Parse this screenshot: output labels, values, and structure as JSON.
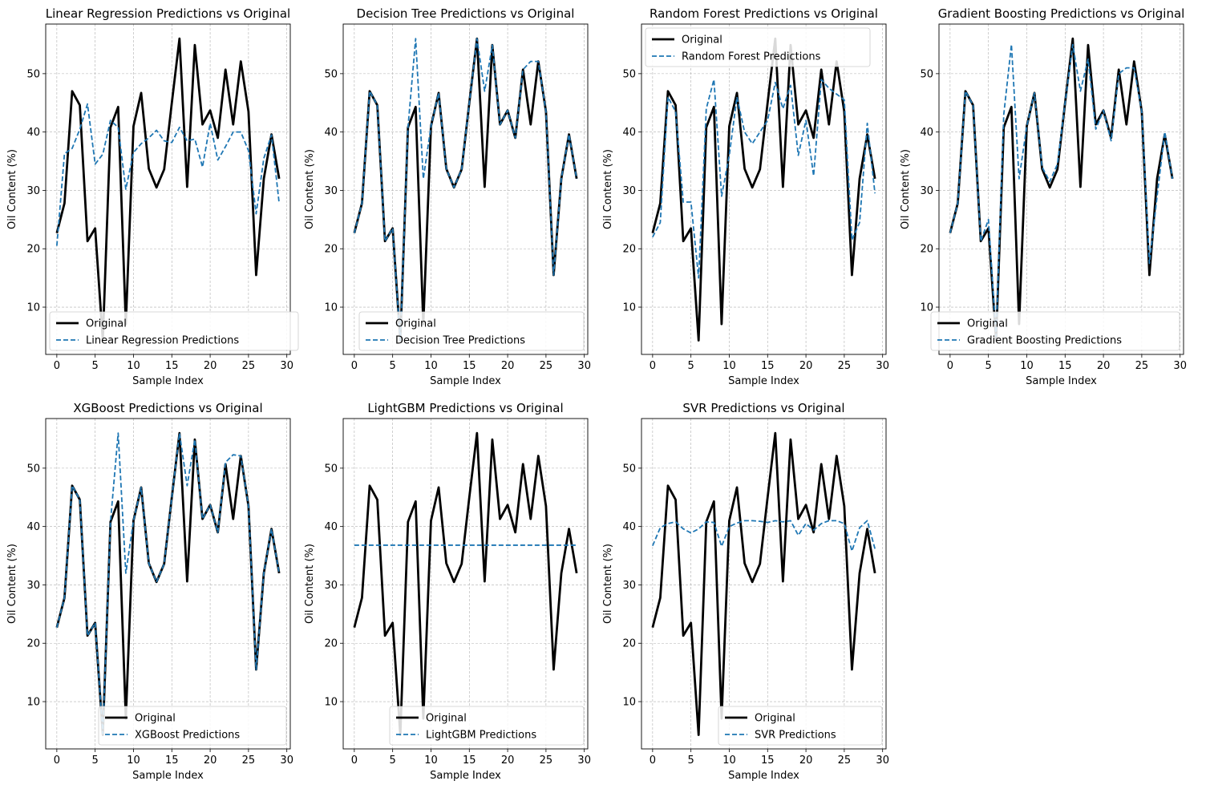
{
  "colors": {
    "original": "#000000",
    "prediction": "#1f77b4",
    "grid": "#b0b0b0"
  },
  "chart_data": [
    {
      "type": "line",
      "title": "Linear Regression Predictions vs Original",
      "xlabel": "Sample Index",
      "ylabel": "Oil Content (%)",
      "xlim": [
        -1.45,
        30.45
      ],
      "ylim": [
        1.9,
        58.5
      ],
      "xticks": [
        0,
        5,
        10,
        15,
        20,
        25,
        30
      ],
      "yticks": [
        10,
        20,
        30,
        40,
        50
      ],
      "grid": true,
      "legend_position": "lower-left",
      "x": [
        0,
        1,
        2,
        3,
        4,
        5,
        6,
        7,
        8,
        9,
        10,
        11,
        12,
        13,
        14,
        15,
        16,
        17,
        18,
        19,
        20,
        21,
        22,
        23,
        24,
        25,
        26,
        27,
        28,
        29
      ],
      "series": [
        {
          "name": "Original",
          "style": "solid",
          "values": [
            22.7,
            27.8,
            47.0,
            44.6,
            21.3,
            23.5,
            4.3,
            40.8,
            44.3,
            7.1,
            41.0,
            46.7,
            33.7,
            30.5,
            33.6,
            45.0,
            56.0,
            30.6,
            54.9,
            41.3,
            43.7,
            39.0,
            50.7,
            41.3,
            52.1,
            43.5,
            15.5,
            32.0,
            39.6,
            32.0
          ]
        },
        {
          "name": "Linear Regression Predictions",
          "style": "dashed",
          "values": [
            20.5,
            36.3,
            37.2,
            40.5,
            44.8,
            34.5,
            36.2,
            42.0,
            40.8,
            30.2,
            36.5,
            38.0,
            39.0,
            40.3,
            38.5,
            38.2,
            40.8,
            38.5,
            38.8,
            34.0,
            41.5,
            35.2,
            37.5,
            40.0,
            40.0,
            36.8,
            26.0,
            35.5,
            39.5,
            27.8
          ]
        }
      ]
    },
    {
      "type": "line",
      "title": "Decision Tree Predictions vs Original",
      "xlabel": "Sample Index",
      "ylabel": "Oil Content (%)",
      "xlim": [
        -1.45,
        30.45
      ],
      "ylim": [
        1.9,
        58.5
      ],
      "xticks": [
        0,
        5,
        10,
        15,
        20,
        25,
        30
      ],
      "yticks": [
        10,
        20,
        30,
        40,
        50
      ],
      "grid": true,
      "legend_position": "lower-right",
      "x": [
        0,
        1,
        2,
        3,
        4,
        5,
        6,
        7,
        8,
        9,
        10,
        11,
        12,
        13,
        14,
        15,
        16,
        17,
        18,
        19,
        20,
        21,
        22,
        23,
        24,
        25,
        26,
        27,
        28,
        29
      ],
      "series": [
        {
          "name": "Original",
          "style": "solid",
          "values": [
            22.7,
            27.8,
            47.0,
            44.6,
            21.3,
            23.5,
            4.3,
            40.8,
            44.3,
            7.1,
            41.0,
            46.7,
            33.7,
            30.5,
            33.6,
            45.0,
            56.0,
            30.6,
            54.9,
            41.3,
            43.7,
            39.0,
            50.7,
            41.3,
            52.1,
            43.5,
            15.5,
            32.0,
            39.6,
            32.0
          ]
        },
        {
          "name": "Decision Tree Predictions",
          "style": "dashed",
          "values": [
            22.7,
            27.8,
            47.0,
            44.6,
            21.3,
            23.5,
            4.3,
            40.8,
            56.0,
            32.0,
            41.0,
            46.7,
            33.7,
            30.5,
            33.6,
            45.0,
            56.0,
            47.0,
            54.9,
            41.3,
            43.7,
            39.0,
            50.7,
            52.1,
            52.1,
            43.5,
            15.5,
            32.0,
            39.6,
            32.0
          ]
        }
      ]
    },
    {
      "type": "line",
      "title": "Random Forest Predictions vs Original",
      "xlabel": "Sample Index",
      "ylabel": "Oil Content (%)",
      "xlim": [
        -1.45,
        30.45
      ],
      "ylim": [
        1.9,
        58.5
      ],
      "xticks": [
        0,
        5,
        10,
        15,
        20,
        25,
        30
      ],
      "yticks": [
        10,
        20,
        30,
        40,
        50
      ],
      "grid": true,
      "legend_position": "upper-left",
      "x": [
        0,
        1,
        2,
        3,
        4,
        5,
        6,
        7,
        8,
        9,
        10,
        11,
        12,
        13,
        14,
        15,
        16,
        17,
        18,
        19,
        20,
        21,
        22,
        23,
        24,
        25,
        26,
        27,
        28,
        29
      ],
      "series": [
        {
          "name": "Original",
          "style": "solid",
          "values": [
            22.7,
            27.8,
            47.0,
            44.6,
            21.3,
            23.5,
            4.3,
            40.8,
            44.3,
            7.1,
            41.0,
            46.7,
            33.7,
            30.5,
            33.6,
            45.0,
            56.0,
            30.6,
            54.9,
            41.3,
            43.7,
            39.0,
            50.7,
            41.3,
            52.1,
            43.5,
            15.5,
            32.0,
            39.6,
            32.0
          ]
        },
        {
          "name": "Random Forest Predictions",
          "style": "dashed",
          "values": [
            22.0,
            24.5,
            46.0,
            43.5,
            28.0,
            28.0,
            15.0,
            44.0,
            49.0,
            29.0,
            36.0,
            46.0,
            40.0,
            38.0,
            40.0,
            42.0,
            48.5,
            44.0,
            48.0,
            36.0,
            42.0,
            32.5,
            49.0,
            47.5,
            46.5,
            45.5,
            21.5,
            24.5,
            41.5,
            29.5
          ]
        }
      ]
    },
    {
      "type": "line",
      "title": "Gradient Boosting Predictions vs Original",
      "xlabel": "Sample Index",
      "ylabel": "Oil Content (%)",
      "xlim": [
        -1.45,
        30.45
      ],
      "ylim": [
        1.9,
        58.5
      ],
      "xticks": [
        0,
        5,
        10,
        15,
        20,
        25,
        30
      ],
      "yticks": [
        10,
        20,
        30,
        40,
        50
      ],
      "grid": true,
      "legend_position": "lower-right",
      "x": [
        0,
        1,
        2,
        3,
        4,
        5,
        6,
        7,
        8,
        9,
        10,
        11,
        12,
        13,
        14,
        15,
        16,
        17,
        18,
        19,
        20,
        21,
        22,
        23,
        24,
        25,
        26,
        27,
        28,
        29
      ],
      "series": [
        {
          "name": "Original",
          "style": "solid",
          "values": [
            22.7,
            27.8,
            47.0,
            44.6,
            21.3,
            23.5,
            4.3,
            40.8,
            44.3,
            7.1,
            41.0,
            46.7,
            33.7,
            30.5,
            33.6,
            45.0,
            56.0,
            30.6,
            54.9,
            41.3,
            43.7,
            39.0,
            50.7,
            41.3,
            52.1,
            43.5,
            15.5,
            32.0,
            39.6,
            32.0
          ]
        },
        {
          "name": "Gradient Boosting Predictions",
          "style": "dashed",
          "values": [
            22.7,
            27.8,
            47.0,
            44.6,
            21.3,
            25.0,
            5.0,
            43.0,
            55.0,
            32.0,
            41.0,
            46.7,
            34.0,
            31.5,
            34.5,
            45.0,
            55.0,
            47.0,
            52.5,
            40.5,
            43.7,
            38.5,
            50.0,
            51.0,
            51.0,
            43.5,
            17.5,
            29.0,
            40.0,
            32.0
          ]
        }
      ]
    },
    {
      "type": "line",
      "title": "XGBoost Predictions vs Original",
      "xlabel": "Sample Index",
      "ylabel": "Oil Content (%)",
      "xlim": [
        -1.45,
        30.45
      ],
      "ylim": [
        1.9,
        58.5
      ],
      "xticks": [
        0,
        5,
        10,
        15,
        20,
        25,
        30
      ],
      "yticks": [
        10,
        20,
        30,
        40,
        50
      ],
      "grid": true,
      "legend_position": "lower-right",
      "x": [
        0,
        1,
        2,
        3,
        4,
        5,
        6,
        7,
        8,
        9,
        10,
        11,
        12,
        13,
        14,
        15,
        16,
        17,
        18,
        19,
        20,
        21,
        22,
        23,
        24,
        25,
        26,
        27,
        28,
        29
      ],
      "series": [
        {
          "name": "Original",
          "style": "solid",
          "values": [
            22.7,
            27.8,
            47.0,
            44.6,
            21.3,
            23.5,
            4.3,
            40.8,
            44.3,
            7.1,
            41.0,
            46.7,
            33.7,
            30.5,
            33.6,
            45.0,
            56.0,
            30.6,
            54.9,
            41.3,
            43.7,
            39.0,
            50.7,
            41.3,
            52.1,
            43.5,
            15.5,
            32.0,
            39.6,
            32.0
          ]
        },
        {
          "name": "XGBoost Predictions",
          "style": "dashed",
          "values": [
            22.7,
            27.8,
            47.0,
            44.6,
            21.3,
            23.5,
            4.5,
            40.8,
            56.0,
            32.0,
            41.0,
            46.7,
            33.7,
            30.5,
            33.6,
            45.0,
            56.0,
            47.0,
            54.9,
            41.3,
            43.7,
            39.0,
            51.0,
            52.3,
            52.1,
            43.5,
            15.5,
            32.0,
            39.6,
            32.0
          ]
        }
      ]
    },
    {
      "type": "line",
      "title": "LightGBM Predictions vs Original",
      "xlabel": "Sample Index",
      "ylabel": "Oil Content (%)",
      "xlim": [
        -1.45,
        30.45
      ],
      "ylim": [
        1.9,
        58.5
      ],
      "xticks": [
        0,
        5,
        10,
        15,
        20,
        25,
        30
      ],
      "yticks": [
        10,
        20,
        30,
        40,
        50
      ],
      "grid": true,
      "legend_position": "lower-right",
      "x": [
        0,
        1,
        2,
        3,
        4,
        5,
        6,
        7,
        8,
        9,
        10,
        11,
        12,
        13,
        14,
        15,
        16,
        17,
        18,
        19,
        20,
        21,
        22,
        23,
        24,
        25,
        26,
        27,
        28,
        29
      ],
      "series": [
        {
          "name": "Original",
          "style": "solid",
          "values": [
            22.7,
            27.8,
            47.0,
            44.6,
            21.3,
            23.5,
            4.3,
            40.8,
            44.3,
            7.1,
            41.0,
            46.7,
            33.7,
            30.5,
            33.6,
            45.0,
            56.0,
            30.6,
            54.9,
            41.3,
            43.7,
            39.0,
            50.7,
            41.3,
            52.1,
            43.5,
            15.5,
            32.0,
            39.6,
            32.0
          ]
        },
        {
          "name": "LightGBM Predictions",
          "style": "dashed",
          "values": [
            36.8,
            36.8,
            36.8,
            36.8,
            36.8,
            36.8,
            36.8,
            36.8,
            36.8,
            36.8,
            36.8,
            36.8,
            36.8,
            36.8,
            36.8,
            36.8,
            36.8,
            36.8,
            36.8,
            36.8,
            36.8,
            36.8,
            36.8,
            36.8,
            36.8,
            36.8,
            36.8,
            36.8,
            36.8,
            36.8
          ]
        }
      ]
    },
    {
      "type": "line",
      "title": "SVR Predictions vs Original",
      "xlabel": "Sample Index",
      "ylabel": "Oil Content (%)",
      "xlim": [
        -1.45,
        30.45
      ],
      "ylim": [
        1.9,
        58.5
      ],
      "xticks": [
        0,
        5,
        10,
        15,
        20,
        25,
        30
      ],
      "yticks": [
        10,
        20,
        30,
        40,
        50
      ],
      "grid": true,
      "legend_position": "lower-right",
      "x": [
        0,
        1,
        2,
        3,
        4,
        5,
        6,
        7,
        8,
        9,
        10,
        11,
        12,
        13,
        14,
        15,
        16,
        17,
        18,
        19,
        20,
        21,
        22,
        23,
        24,
        25,
        26,
        27,
        28,
        29
      ],
      "series": [
        {
          "name": "Original",
          "style": "solid",
          "values": [
            22.7,
            27.8,
            47.0,
            44.6,
            21.3,
            23.5,
            4.3,
            40.8,
            44.3,
            7.1,
            41.0,
            46.7,
            33.7,
            30.5,
            33.6,
            45.0,
            56.0,
            30.6,
            54.9,
            41.3,
            43.7,
            39.0,
            50.7,
            41.3,
            52.1,
            43.5,
            15.5,
            32.0,
            39.6,
            32.0
          ]
        },
        {
          "name": "SVR Predictions",
          "style": "dashed",
          "values": [
            36.7,
            39.8,
            40.5,
            40.8,
            39.6,
            38.9,
            39.6,
            40.8,
            40.7,
            36.6,
            40.0,
            40.6,
            41.0,
            41.0,
            40.9,
            40.7,
            41.0,
            40.8,
            41.0,
            38.5,
            40.5,
            39.4,
            40.5,
            41.0,
            41.0,
            40.5,
            35.8,
            39.8,
            41.0,
            36.2
          ]
        }
      ]
    }
  ]
}
